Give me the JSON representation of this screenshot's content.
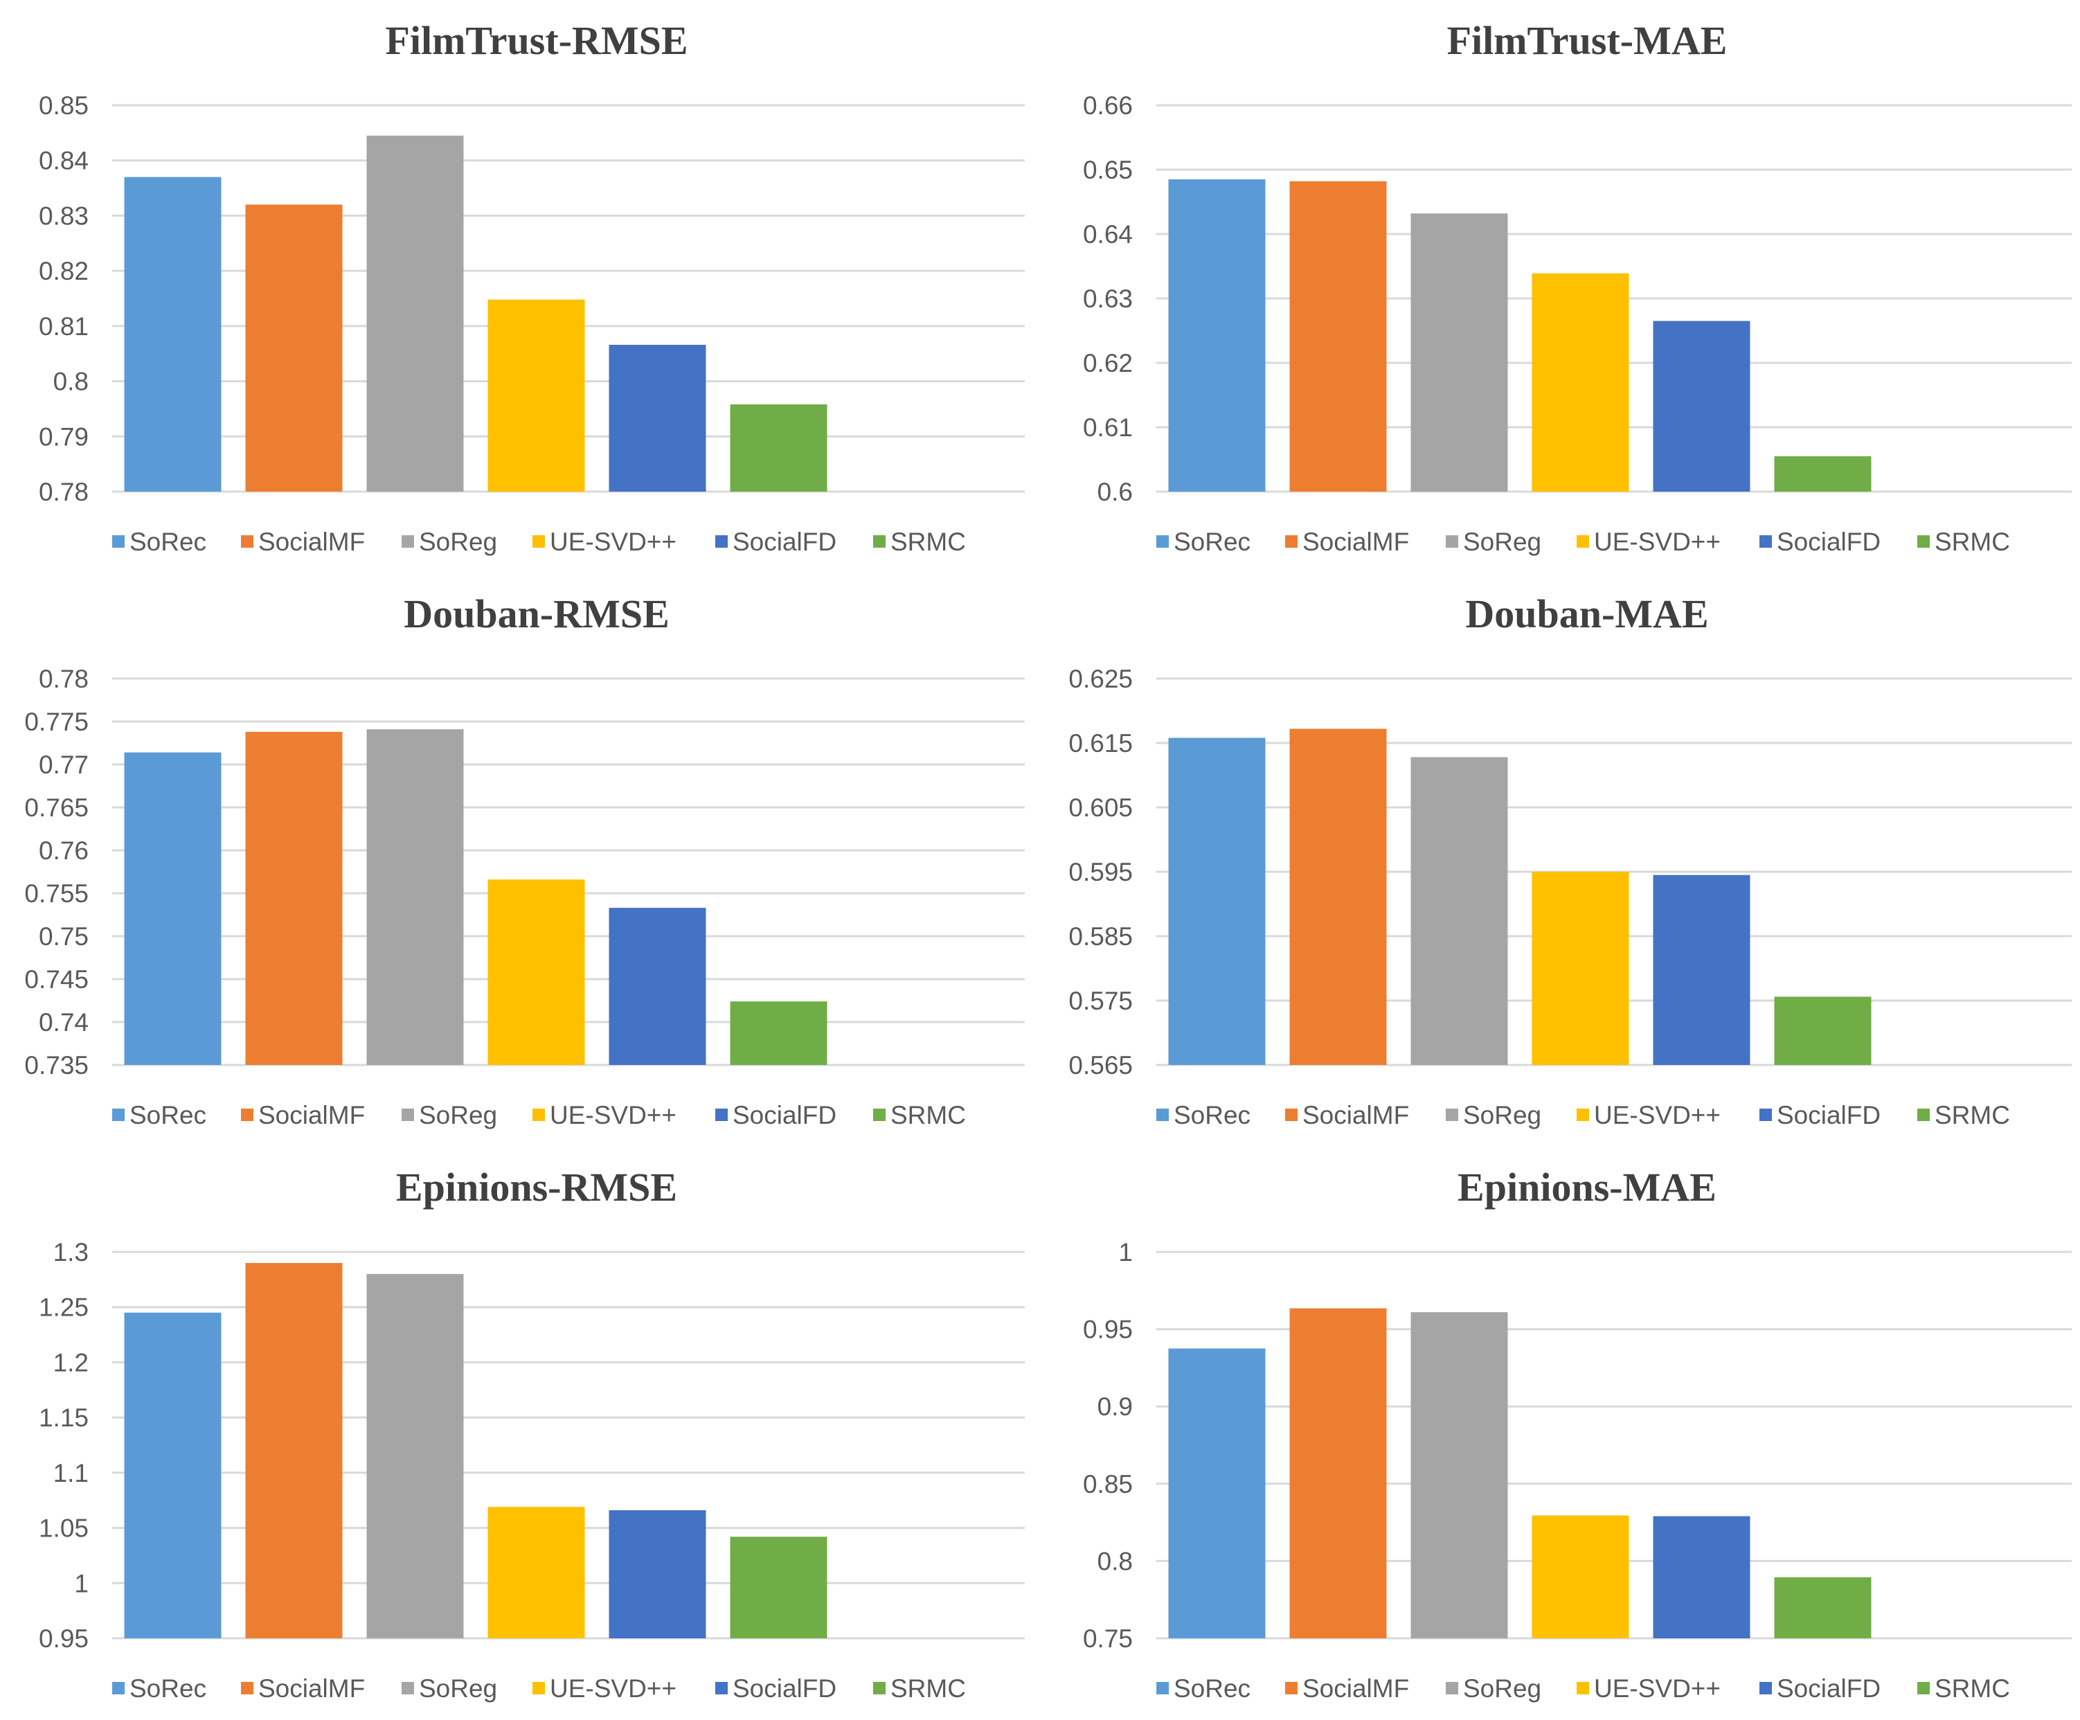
{
  "figure": {
    "legend_labels": [
      "SoRec",
      "SocialMF",
      "SoReg",
      "UE-SVD++",
      "SocialFD",
      "SRMC"
    ],
    "colors": [
      "#5b9bd5",
      "#ed7d31",
      "#a5a5a5",
      "#ffc000",
      "#4472c4",
      "#70ad47"
    ],
    "grid_color": "#d9d9d9",
    "text_color": "#595959",
    "title_color": "#404040"
  },
  "chart_data": [
    {
      "type": "bar",
      "title": "FilmTrust-RMSE",
      "categories": [
        "SoRec",
        "SocialMF",
        "SoReg",
        "UE-SVD++",
        "SocialFD",
        "SRMC"
      ],
      "values": [
        0.837,
        0.832,
        0.8445,
        0.8148,
        0.8066,
        0.7958
      ],
      "ylim": [
        0.78,
        0.85
      ],
      "yticks": [
        "0.78",
        "0.79",
        "0.8",
        "0.81",
        "0.82",
        "0.83",
        "0.84",
        "0.85"
      ],
      "grid": true,
      "legend": "bottom"
    },
    {
      "type": "bar",
      "title": "FilmTrust-MAE",
      "categories": [
        "SoRec",
        "SocialMF",
        "SoReg",
        "UE-SVD++",
        "SocialFD",
        "SRMC"
      ],
      "values": [
        0.6485,
        0.6482,
        0.6432,
        0.6339,
        0.6265,
        0.6055
      ],
      "ylim": [
        0.6,
        0.66
      ],
      "yticks": [
        "0.6",
        "0.61",
        "0.62",
        "0.63",
        "0.64",
        "0.65",
        "0.66"
      ],
      "grid": true,
      "legend": "bottom"
    },
    {
      "type": "bar",
      "title": "Douban-RMSE",
      "categories": [
        "SoRec",
        "SocialMF",
        "SoReg",
        "UE-SVD++",
        "SocialFD",
        "SRMC"
      ],
      "values": [
        0.7714,
        0.7738,
        0.7741,
        0.7566,
        0.7533,
        0.7424
      ],
      "ylim": [
        0.735,
        0.78
      ],
      "yticks": [
        "0.735",
        "0.74",
        "0.745",
        "0.75",
        "0.755",
        "0.76",
        "0.765",
        "0.77",
        "0.775",
        "0.78"
      ],
      "grid": true,
      "legend": "bottom"
    },
    {
      "type": "bar",
      "title": "Douban-MAE",
      "categories": [
        "SoRec",
        "SocialMF",
        "SoReg",
        "UE-SVD++",
        "SocialFD",
        "SRMC"
      ],
      "values": [
        0.6158,
        0.6172,
        0.6128,
        0.595,
        0.5945,
        0.5756
      ],
      "ylim": [
        0.565,
        0.625
      ],
      "yticks": [
        "0.565",
        "0.575",
        "0.585",
        "0.595",
        "0.605",
        "0.615",
        "0.625"
      ],
      "grid": true,
      "legend": "bottom"
    },
    {
      "type": "bar",
      "title": "Epinions-RMSE",
      "categories": [
        "SoRec",
        "SocialMF",
        "SoReg",
        "UE-SVD++",
        "SocialFD",
        "SRMC"
      ],
      "values": [
        1.245,
        1.29,
        1.28,
        1.069,
        1.066,
        1.042
      ],
      "ylim": [
        0.95,
        1.3
      ],
      "yticks": [
        "0.95",
        "1",
        "1.05",
        "1.1",
        "1.15",
        "1.2",
        "1.25",
        "1.3"
      ],
      "grid": true,
      "legend": "bottom"
    },
    {
      "type": "bar",
      "title": "Epinions-MAE",
      "categories": [
        "SoRec",
        "SocialMF",
        "SoReg",
        "UE-SVD++",
        "SocialFD",
        "SRMC"
      ],
      "values": [
        0.9375,
        0.9635,
        0.961,
        0.8295,
        0.829,
        0.7895
      ],
      "ylim": [
        0.75,
        1.0
      ],
      "yticks": [
        "0.75",
        "0.8",
        "0.85",
        "0.9",
        "0.95",
        "1"
      ],
      "grid": true,
      "legend": "bottom"
    }
  ]
}
